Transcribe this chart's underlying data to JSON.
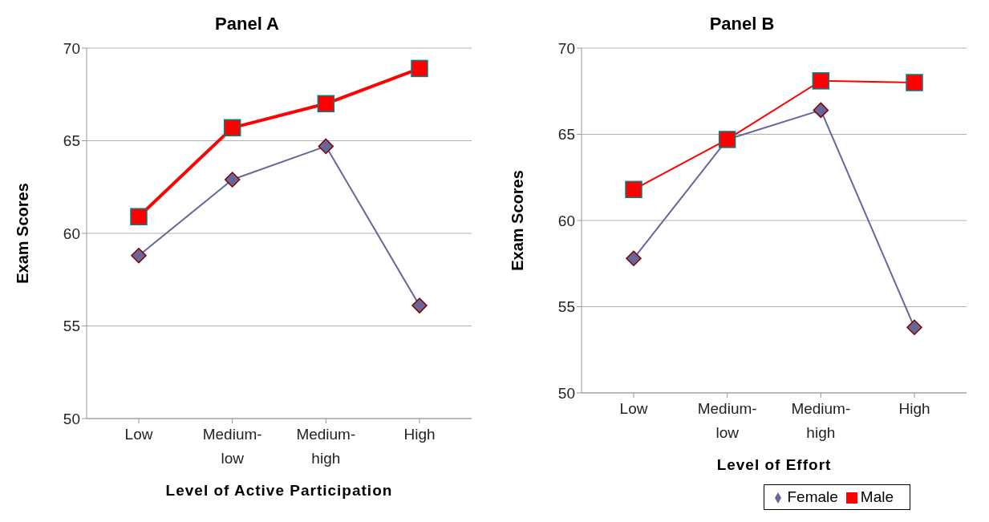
{
  "chart_data": [
    {
      "type": "line",
      "title": "Panel A",
      "xlabel": "Level of Active Participation",
      "ylabel": "Exam Scores",
      "categories": [
        "Low",
        "Medium-low",
        "Medium-high",
        "High"
      ],
      "ylim": [
        50,
        70
      ],
      "yticks": [
        50,
        55,
        60,
        65,
        70
      ],
      "grid": "y",
      "legend": false,
      "series": [
        {
          "color": "#666699",
          "marker": "diamond",
          "values": [
            58.8,
            62.9,
            64.7,
            56.1
          ]
        },
        {
          "color": "#ff0000",
          "marker": "square",
          "values": [
            60.9,
            65.7,
            67.0,
            68.9
          ]
        }
      ]
    },
    {
      "type": "line",
      "title": "Panel B",
      "xlabel": "Level of Effort",
      "ylabel": "Exam Scores",
      "categories": [
        "Low",
        "Medium-low",
        "Medium-high",
        "High"
      ],
      "ylim": [
        50,
        70
      ],
      "yticks": [
        50,
        55,
        60,
        65,
        70
      ],
      "grid": "y",
      "legend": "bottom",
      "series": [
        {
          "name": "Female",
          "color": "#666699",
          "marker": "diamond",
          "values": [
            57.8,
            64.7,
            66.4,
            53.8
          ]
        },
        {
          "name": "Male",
          "color": "#ff0000",
          "marker": "square",
          "values": [
            61.8,
            64.7,
            68.1,
            68.0
          ]
        }
      ]
    }
  ]
}
